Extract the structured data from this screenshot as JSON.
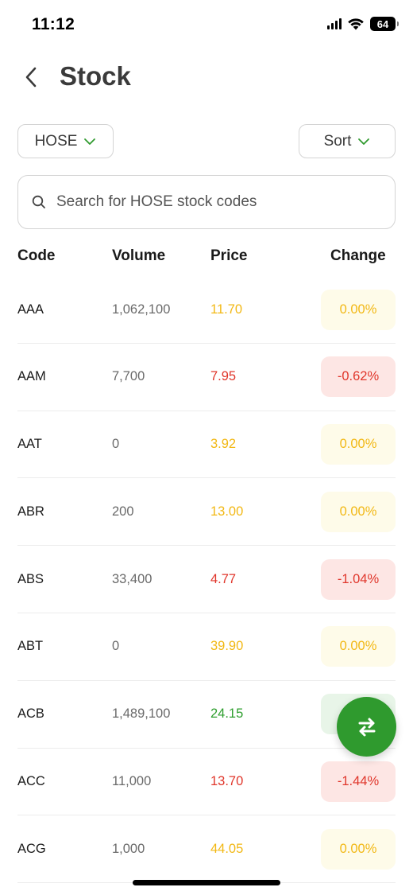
{
  "status": {
    "time": "11:12",
    "battery": "64"
  },
  "header": {
    "title": "Stock",
    "back_icon": "chevron-left-icon"
  },
  "filters": {
    "exchange_label": "HOSE",
    "sort_label": "Sort",
    "accent_color": "#2f9a2e"
  },
  "search": {
    "placeholder": "Search for HOSE stock codes",
    "value": ""
  },
  "table": {
    "columns": [
      "Code",
      "Volume",
      "Price",
      "Change"
    ],
    "rows": [
      {
        "code": "AAA",
        "volume": "1,062,100",
        "price": "11.70",
        "change": "0.00%",
        "trend": "flat"
      },
      {
        "code": "AAM",
        "volume": "7,700",
        "price": "7.95",
        "change": "-0.62%",
        "trend": "down"
      },
      {
        "code": "AAT",
        "volume": "0",
        "price": "3.92",
        "change": "0.00%",
        "trend": "flat"
      },
      {
        "code": "ABR",
        "volume": "200",
        "price": "13.00",
        "change": "0.00%",
        "trend": "flat"
      },
      {
        "code": "ABS",
        "volume": "33,400",
        "price": "4.77",
        "change": "-1.04%",
        "trend": "down"
      },
      {
        "code": "ABT",
        "volume": "0",
        "price": "39.90",
        "change": "0.00%",
        "trend": "flat"
      },
      {
        "code": "ACB",
        "volume": "1,489,100",
        "price": "24.15",
        "change": "+",
        "trend": "up"
      },
      {
        "code": "ACC",
        "volume": "11,000",
        "price": "13.70",
        "change": "-1.44%",
        "trend": "down"
      },
      {
        "code": "ACG",
        "volume": "1,000",
        "price": "44.05",
        "change": "0.00%",
        "trend": "flat"
      }
    ]
  },
  "colors": {
    "flat": "#f2b815",
    "down": "#e0362b",
    "up": "#2e9e2e"
  },
  "fab": {
    "icon": "swap-arrows-icon"
  }
}
